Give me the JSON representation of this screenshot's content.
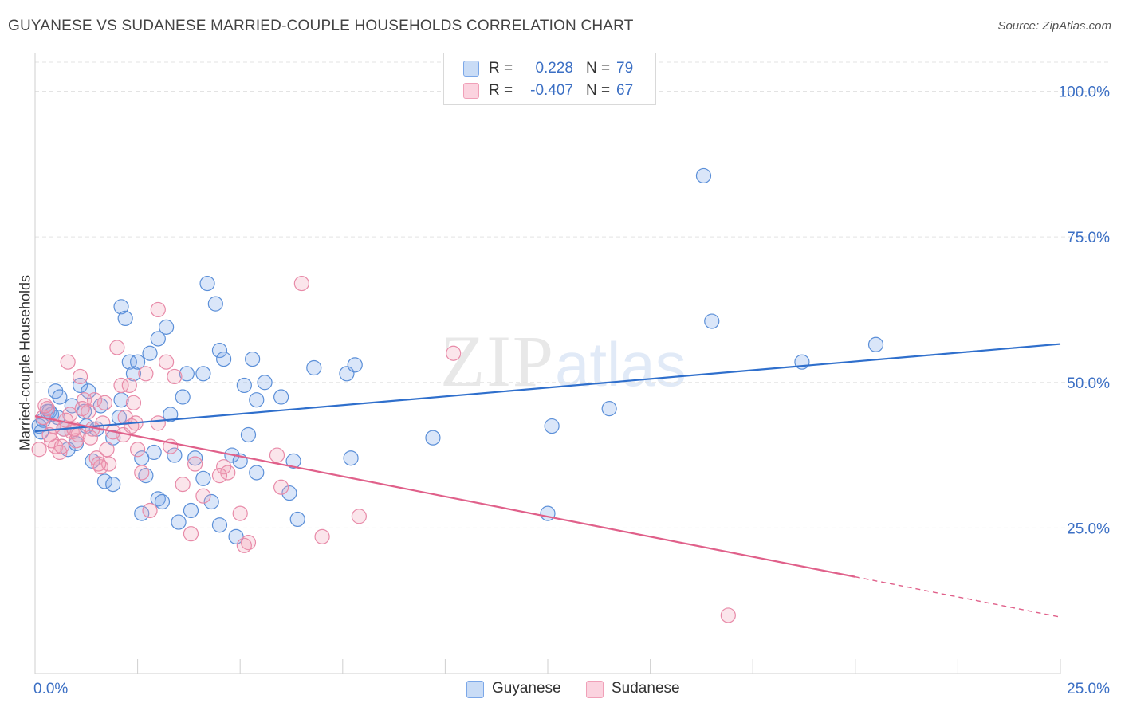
{
  "header": {
    "title": "GUYANESE VS SUDANESE MARRIED-COUPLE HOUSEHOLDS CORRELATION CHART",
    "source": "Source: ZipAtlas.com"
  },
  "watermark": {
    "zip": "ZIP",
    "atlas": "atlas"
  },
  "legend_top": [
    {
      "r_label": "R =",
      "r_value": "0.228",
      "n_label": "N =",
      "n_value": "79",
      "color": "#7ba7e8"
    },
    {
      "r_label": "R =",
      "r_value": "-0.407",
      "n_label": "N =",
      "n_value": "67",
      "color": "#f0a0b8"
    }
  ],
  "legend_bottom": [
    {
      "label": "Guyanese",
      "color": "#7ba7e8"
    },
    {
      "label": "Sudanese",
      "color": "#f0a0b8"
    }
  ],
  "chart_data": {
    "type": "scatter",
    "title": "GUYANESE VS SUDANESE MARRIED-COUPLE HOUSEHOLDS CORRELATION CHART",
    "xlabel": "",
    "ylabel": "Married-couple Households",
    "xlim": [
      0,
      25
    ],
    "ylim": [
      0,
      105
    ],
    "x_tick_labels": [
      "0.0%",
      "25.0%"
    ],
    "y_ticks": [
      25,
      50,
      75,
      100
    ],
    "y_tick_labels": [
      "25.0%",
      "50.0%",
      "75.0%",
      "100.0%"
    ],
    "grid": true,
    "legend_position": "top-center",
    "series": [
      {
        "name": "Guyanese",
        "color": "#7ba7e8",
        "line_color": "#2f6fcc",
        "trend": {
          "x0": 0,
          "y0": 41.6,
          "x1": 25,
          "y1": 56.6
        },
        "points": [
          [
            0.1,
            42.5
          ],
          [
            0.2,
            43.5
          ],
          [
            0.3,
            45.0
          ],
          [
            0.4,
            44.5
          ],
          [
            0.5,
            48.5
          ],
          [
            0.6,
            47.5
          ],
          [
            0.7,
            42.0
          ],
          [
            0.8,
            38.5
          ],
          [
            0.9,
            46.0
          ],
          [
            1.0,
            39.5
          ],
          [
            1.1,
            49.5
          ],
          [
            1.2,
            45.0
          ],
          [
            1.3,
            48.5
          ],
          [
            1.4,
            36.5
          ],
          [
            1.5,
            42.0
          ],
          [
            1.6,
            46.0
          ],
          [
            1.7,
            33.0
          ],
          [
            1.9,
            32.5
          ],
          [
            1.9,
            40.5
          ],
          [
            2.1,
            47.0
          ],
          [
            2.1,
            63.0
          ],
          [
            2.2,
            61.0
          ],
          [
            2.3,
            53.5
          ],
          [
            2.4,
            51.5
          ],
          [
            2.5,
            53.5
          ],
          [
            2.6,
            37.0
          ],
          [
            2.6,
            27.5
          ],
          [
            2.7,
            34.0
          ],
          [
            2.8,
            55.0
          ],
          [
            2.9,
            38.0
          ],
          [
            3.0,
            30.0
          ],
          [
            3.0,
            57.5
          ],
          [
            3.1,
            29.5
          ],
          [
            3.2,
            59.5
          ],
          [
            3.3,
            44.5
          ],
          [
            3.4,
            37.5
          ],
          [
            3.5,
            26.0
          ],
          [
            3.6,
            47.5
          ],
          [
            3.7,
            51.5
          ],
          [
            3.8,
            28.0
          ],
          [
            3.9,
            37.0
          ],
          [
            4.1,
            51.5
          ],
          [
            4.1,
            33.5
          ],
          [
            4.2,
            67.0
          ],
          [
            4.3,
            29.5
          ],
          [
            4.4,
            63.5
          ],
          [
            4.5,
            25.5
          ],
          [
            4.5,
            55.5
          ],
          [
            4.6,
            54.0
          ],
          [
            4.8,
            37.5
          ],
          [
            4.9,
            23.5
          ],
          [
            5.0,
            36.5
          ],
          [
            5.1,
            49.5
          ],
          [
            5.2,
            41.0
          ],
          [
            5.3,
            54.0
          ],
          [
            5.4,
            34.5
          ],
          [
            5.4,
            47.0
          ],
          [
            5.6,
            50.0
          ],
          [
            6.0,
            47.5
          ],
          [
            6.2,
            31.0
          ],
          [
            6.3,
            36.5
          ],
          [
            6.4,
            26.5
          ],
          [
            6.8,
            52.5
          ],
          [
            7.6,
            51.5
          ],
          [
            7.7,
            37.0
          ],
          [
            7.8,
            53.0
          ],
          [
            9.7,
            40.5
          ],
          [
            12.5,
            27.5
          ],
          [
            12.6,
            42.5
          ],
          [
            14.0,
            45.5
          ],
          [
            16.3,
            85.5
          ],
          [
            16.5,
            60.5
          ],
          [
            18.7,
            53.5
          ],
          [
            20.5,
            56.5
          ],
          [
            0.35,
            45.0
          ],
          [
            0.55,
            44.0
          ],
          [
            1.25,
            42.5
          ],
          [
            2.05,
            44.0
          ],
          [
            0.15,
            41.5
          ]
        ]
      },
      {
        "name": "Sudanese",
        "color": "#f0a0b8",
        "line_color": "#e0608a",
        "trend": {
          "x0": 0,
          "y0": 44.2,
          "x1": 20.0,
          "y1": 16.6
        },
        "trend_dashed": {
          "x0": 20.0,
          "y0": 16.6,
          "x1": 25,
          "y1": 9.7
        },
        "points": [
          [
            0.1,
            38.5
          ],
          [
            0.2,
            44.0
          ],
          [
            0.3,
            45.5
          ],
          [
            0.4,
            40.0
          ],
          [
            0.5,
            39.0
          ],
          [
            0.6,
            38.0
          ],
          [
            0.7,
            42.0
          ],
          [
            0.8,
            53.5
          ],
          [
            0.9,
            41.5
          ],
          [
            1.0,
            40.0
          ],
          [
            1.1,
            51.0
          ],
          [
            1.2,
            47.0
          ],
          [
            1.3,
            45.0
          ],
          [
            1.4,
            42.0
          ],
          [
            1.5,
            37.0
          ],
          [
            1.6,
            35.5
          ],
          [
            1.7,
            46.5
          ],
          [
            1.8,
            36.0
          ],
          [
            1.9,
            41.5
          ],
          [
            2.0,
            56.0
          ],
          [
            2.1,
            49.5
          ],
          [
            2.2,
            44.0
          ],
          [
            2.3,
            49.5
          ],
          [
            2.4,
            46.5
          ],
          [
            2.5,
            38.5
          ],
          [
            2.6,
            34.5
          ],
          [
            2.7,
            51.5
          ],
          [
            2.8,
            28.0
          ],
          [
            3.0,
            43.0
          ],
          [
            3.0,
            62.5
          ],
          [
            3.2,
            53.5
          ],
          [
            3.4,
            51.0
          ],
          [
            3.6,
            32.5
          ],
          [
            3.8,
            24.0
          ],
          [
            3.9,
            36.0
          ],
          [
            4.1,
            30.5
          ],
          [
            4.6,
            35.5
          ],
          [
            4.7,
            34.5
          ],
          [
            5.0,
            27.5
          ],
          [
            5.2,
            22.5
          ],
          [
            5.9,
            37.5
          ],
          [
            6.5,
            67.0
          ],
          [
            7.0,
            23.5
          ],
          [
            7.9,
            27.0
          ],
          [
            10.2,
            55.0
          ],
          [
            16.9,
            10.0
          ],
          [
            0.25,
            46.0
          ],
          [
            0.45,
            42.5
          ],
          [
            0.65,
            39.0
          ],
          [
            0.85,
            44.5
          ],
          [
            1.05,
            41.0
          ],
          [
            1.35,
            40.5
          ],
          [
            1.55,
            36.0
          ],
          [
            1.75,
            38.5
          ],
          [
            2.15,
            41.0
          ],
          [
            2.45,
            43.0
          ],
          [
            1.15,
            45.5
          ],
          [
            0.95,
            42.0
          ],
          [
            0.75,
            43.5
          ],
          [
            0.35,
            41.0
          ],
          [
            1.65,
            43.0
          ],
          [
            2.35,
            42.5
          ],
          [
            1.45,
            47.0
          ],
          [
            3.3,
            39.0
          ],
          [
            4.5,
            34.0
          ],
          [
            5.1,
            22.0
          ],
          [
            6.0,
            32.0
          ]
        ]
      }
    ]
  }
}
